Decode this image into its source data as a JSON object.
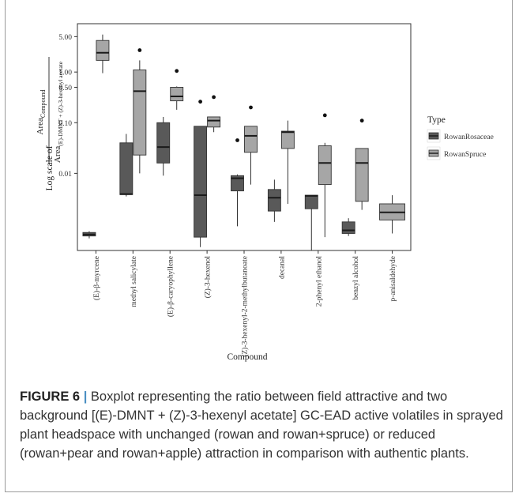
{
  "chart_data": {
    "type": "boxplot",
    "xlabel": "Compound",
    "ylabel": {
      "prefix": "Log scale of",
      "numerator": "Area",
      "numerator_sub": "Compound",
      "denominator": "Area",
      "denominator_sub": "(E)-DMNT + (Z)-3-hexenyl acetate"
    },
    "y_scale": "log",
    "ylim": [
      0.0003,
      9
    ],
    "y_ticks": [
      {
        "value": 5,
        "label": "5.00"
      },
      {
        "value": 1,
        "label": "1.00"
      },
      {
        "value": 0.5,
        "label": "0.50"
      },
      {
        "value": 0.1,
        "label": "0.10"
      },
      {
        "value": 0.01,
        "label": "0.01"
      }
    ],
    "legend": {
      "title": "Type",
      "position": "right",
      "entries": [
        {
          "name": "RowanRosaceae",
          "color": "#595959"
        },
        {
          "name": "RowanSpruce",
          "color": "#a6a6a6"
        }
      ]
    },
    "categories": [
      "(E)-β-myrcene",
      "methyl salicylate",
      "(E)-β-caryophyllene",
      "(Z)-3-hexenol",
      "(Z)-3-hexenyl-2-methylbutanoate",
      "decanal",
      "2-phenyl ethanol",
      "benzyl alcohol",
      "p-anisaldehyde"
    ],
    "series": [
      {
        "name": "RowanRosaceae",
        "boxes": [
          {
            "category": "(E)-β-myrcene",
            "whisker_low": 0.00052,
            "q1": 0.00058,
            "median": 0.00062,
            "q3": 0.00068,
            "whisker_high": 0.00072,
            "outliers": []
          },
          {
            "category": "methyl salicylate",
            "whisker_low": 0.0035,
            "q1": 0.0038,
            "median": 0.0039,
            "q3": 0.04,
            "whisker_high": 0.06,
            "outliers": []
          },
          {
            "category": "(E)-β-caryophyllene",
            "whisker_low": 0.009,
            "q1": 0.016,
            "median": 0.033,
            "q3": 0.1,
            "whisker_high": 0.13,
            "outliers": []
          },
          {
            "category": "(Z)-3-hexenol",
            "whisker_low": 0.00035,
            "q1": 0.00055,
            "median": 0.0037,
            "q3": 0.085,
            "whisker_high": 0.085,
            "outliers": [
              0.26
            ]
          },
          {
            "category": "(Z)-3-hexenyl-2-methylbutanoate",
            "whisker_low": 0.0009,
            "q1": 0.0045,
            "median": 0.008,
            "q3": 0.009,
            "whisker_high": 0.0095,
            "outliers": [
              0.045
            ]
          },
          {
            "category": "decanal",
            "whisker_low": 0.0011,
            "q1": 0.0018,
            "median": 0.0033,
            "q3": 0.0048,
            "whisker_high": 0.0075,
            "outliers": []
          },
          {
            "category": "2-phenyl ethanol",
            "whisker_low": 0.0003,
            "q1": 0.002,
            "median": 0.0036,
            "q3": 0.0037,
            "whisker_high": 0.0037,
            "outliers": []
          },
          {
            "category": "benzyl alcohol",
            "whisker_low": 0.00058,
            "q1": 0.00065,
            "median": 0.00075,
            "q3": 0.0011,
            "whisker_high": 0.0013,
            "outliers": []
          }
        ]
      },
      {
        "name": "RowanSpruce",
        "boxes": [
          {
            "category": "(E)-β-myrcene",
            "whisker_low": 0.95,
            "q1": 1.7,
            "median": 2.4,
            "q3": 4.2,
            "whisker_high": 5.5,
            "outliers": []
          },
          {
            "category": "methyl salicylate",
            "whisker_low": 0.01,
            "q1": 0.023,
            "median": 0.42,
            "q3": 1.1,
            "whisker_high": 1.7,
            "outliers": [
              2.7
            ]
          },
          {
            "category": "(E)-β-caryophyllene",
            "whisker_low": 0.18,
            "q1": 0.27,
            "median": 0.33,
            "q3": 0.5,
            "whisker_high": 0.52,
            "outliers": [
              1.05
            ]
          },
          {
            "category": "(Z)-3-hexenol",
            "whisker_low": 0.065,
            "q1": 0.082,
            "median": 0.11,
            "q3": 0.13,
            "whisker_high": 0.13,
            "outliers": [
              0.32
            ]
          },
          {
            "category": "(Z)-3-hexenyl-2-methylbutanoate",
            "whisker_low": 0.006,
            "q1": 0.026,
            "median": 0.055,
            "q3": 0.085,
            "whisker_high": 0.085,
            "outliers": [
              0.2
            ]
          },
          {
            "category": "decanal",
            "whisker_low": 0.0025,
            "q1": 0.031,
            "median": 0.065,
            "q3": 0.068,
            "whisker_high": 0.11,
            "outliers": []
          },
          {
            "category": "2-phenyl ethanol",
            "whisker_low": 0.00055,
            "q1": 0.006,
            "median": 0.016,
            "q3": 0.035,
            "whisker_high": 0.04,
            "outliers": [
              0.14
            ]
          },
          {
            "category": "benzyl alcohol",
            "whisker_low": 0.0019,
            "q1": 0.0028,
            "median": 0.016,
            "q3": 0.031,
            "whisker_high": 0.031,
            "outliers": [
              0.11
            ]
          },
          {
            "category": "p-anisaldehyde",
            "whisker_low": 0.00065,
            "q1": 0.0012,
            "median": 0.0017,
            "q3": 0.0025,
            "whisker_high": 0.0037,
            "outliers": []
          }
        ]
      }
    ]
  },
  "caption": {
    "label": "FIGURE 6",
    "separator": "|",
    "text": "Boxplot representing the ratio between field attractive and two background [(E)-DMNT + (Z)-3-hexenyl acetate] GC-EAD active volatiles in sprayed plant headspace with unchanged (rowan and rowan+spruce) or reduced (rowan+pear and rowan+apple) attraction in comparison with authentic plants."
  }
}
